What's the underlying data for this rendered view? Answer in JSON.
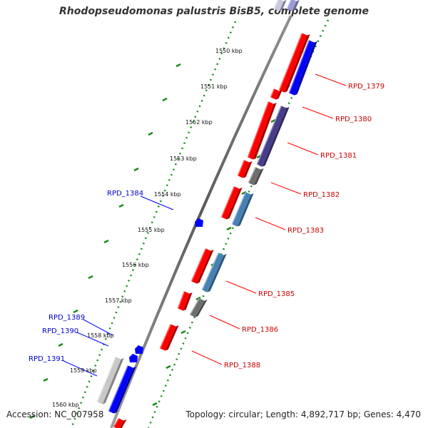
{
  "title": "Rhodopseudomonas palustris BisB5, complete genome",
  "accession": "Accession: NC_007958",
  "topology": "Topology: circular; Length: 4,892,717 bp; Genes: 4,470",
  "colors": {
    "forward_gene": "#ff0000",
    "reverse_gene": "#0000ff",
    "steelblue_gene": "#4682b4",
    "slate_gene": "#483d8b",
    "grey_gene": "#6e6e6e",
    "silver_gene": "#c8c8c8",
    "tick": "#1a8a1a",
    "label_red": "#cc0000",
    "label_blue": "#0000cc"
  },
  "scale_labels": [
    "1550 kbp",
    "1551 kbp",
    "1552 kbp",
    "1553 kbp",
    "1554 kbp",
    "1555 kbp",
    "1556 kbp",
    "1557 kbp",
    "1558 kbp",
    "1559 kbp",
    "1560 kbp"
  ],
  "genes_labeled_right": [
    "RPD_1379",
    "RPD_1380",
    "RPD_1381",
    "RPD_1382",
    "RPD_1383",
    "RPD_1385",
    "RPD_1386",
    "RPD_1388"
  ],
  "genes_labeled_left": [
    "RPD_1384",
    "RPD_1389",
    "RPD_1390",
    "RPD_1391"
  ]
}
